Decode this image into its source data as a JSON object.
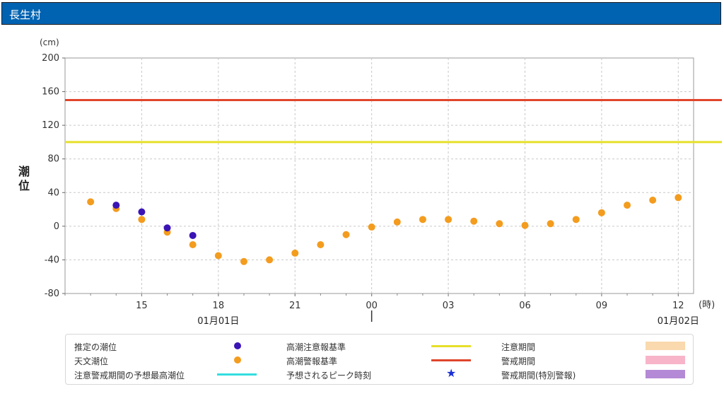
{
  "header": {
    "title": "長生村"
  },
  "chart_data": {
    "type": "scatter",
    "unit_label": "(cm)",
    "ylabel": "潮位",
    "xunit_label": "(時)",
    "ylim": [
      -80,
      200
    ],
    "yticks": [
      -80,
      -40,
      0,
      40,
      80,
      120,
      160,
      200
    ],
    "xrange": [
      12,
      36.6
    ],
    "xticks": [
      {
        "x": 15,
        "label": "15"
      },
      {
        "x": 18,
        "label": "18"
      },
      {
        "x": 21,
        "label": "21"
      },
      {
        "x": 24,
        "label": "00"
      },
      {
        "x": 27,
        "label": "03"
      },
      {
        "x": 30,
        "label": "06"
      },
      {
        "x": 33,
        "label": "09"
      },
      {
        "x": 36,
        "label": "12"
      }
    ],
    "date_labels": [
      {
        "x": 18,
        "label": "01月01日"
      },
      {
        "x": 36,
        "label": "01月02日"
      }
    ],
    "date_divider_x": 24,
    "reference_lines": [
      {
        "name": "高潮警報基準",
        "y": 150,
        "color": "#e0452b"
      },
      {
        "name": "高潮注意報基準",
        "y": 100,
        "color": "#e6e02a"
      }
    ],
    "series": [
      {
        "name": "天文潮位",
        "color": "#f39c1e",
        "points": [
          [
            13,
            29
          ],
          [
            14,
            21
          ],
          [
            15,
            8
          ],
          [
            16,
            -7
          ],
          [
            17,
            -22
          ],
          [
            18,
            -35
          ],
          [
            19,
            -42
          ],
          [
            20,
            -40
          ],
          [
            21,
            -32
          ],
          [
            22,
            -22
          ],
          [
            23,
            -10
          ],
          [
            24,
            -1
          ],
          [
            25,
            5
          ],
          [
            26,
            8
          ],
          [
            27,
            8
          ],
          [
            28,
            6
          ],
          [
            29,
            3
          ],
          [
            30,
            1
          ],
          [
            31,
            3
          ],
          [
            32,
            8
          ],
          [
            33,
            16
          ],
          [
            34,
            25
          ],
          [
            35,
            31
          ],
          [
            36,
            34
          ]
        ]
      },
      {
        "name": "推定の潮位",
        "color": "#3a14b5",
        "points": [
          [
            14,
            25
          ],
          [
            15,
            17
          ],
          [
            16,
            -2
          ],
          [
            17,
            -11
          ]
        ]
      }
    ]
  },
  "legend": {
    "estimated": "推定の潮位",
    "astronomical": "天文潮位",
    "forecast_max": "注意警戒期間の予想最高潮位",
    "advisory_level": "高潮注意報基準",
    "warning_level": "高潮警報基準",
    "peak_time": "予想されるピーク時刻",
    "advisory_period": "注意期間",
    "warning_period": "警戒期間",
    "special_warning_period": "警戒期間(特別警報)",
    "colors": {
      "estimated": "#3a14b5",
      "astronomical": "#f39c1e",
      "forecast_max": "#33dde0",
      "advisory_level": "#e6e02a",
      "warning_level": "#e0452b",
      "peak_time": "#1a2fd6",
      "advisory_period": "#f9d9ad",
      "warning_period": "#f8b5c9",
      "special_warning_period": "#b48ad6"
    }
  }
}
